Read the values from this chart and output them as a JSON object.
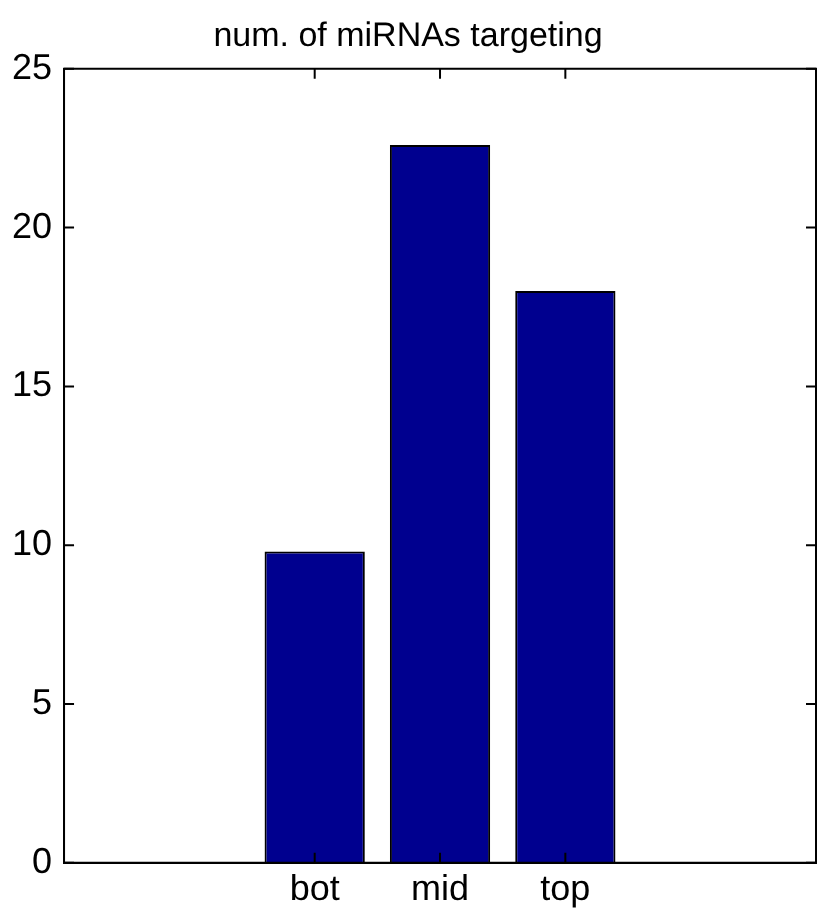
{
  "chart_data": {
    "type": "bar",
    "title": "num. of miRNAs targeting",
    "categories": [
      "bot",
      "mid",
      "top"
    ],
    "values": [
      9.8,
      22.6,
      18.0
    ],
    "color": "#00008f",
    "ylim": [
      0,
      25
    ],
    "yticks": [
      0,
      5,
      10,
      15,
      20,
      25
    ],
    "grid": false,
    "legend": false
  }
}
